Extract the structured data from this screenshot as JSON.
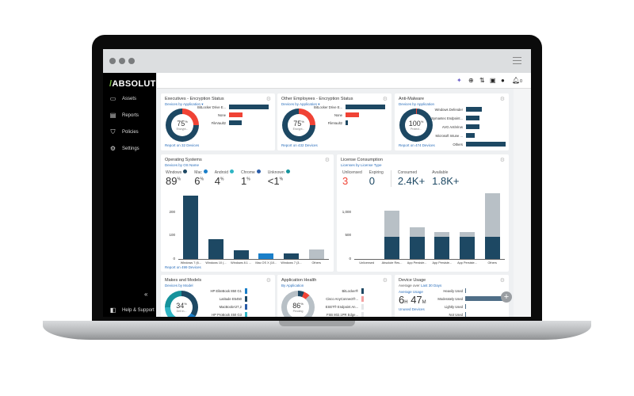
{
  "app": {
    "logo": "ABSOLUTE"
  },
  "sidebar": {
    "items": [
      {
        "label": "Assets",
        "icon": "laptop-icon"
      },
      {
        "label": "Reports",
        "icon": "document-icon"
      },
      {
        "label": "Policies",
        "icon": "shield-icon"
      },
      {
        "label": "Settings",
        "icon": "gear-icon"
      }
    ],
    "collapse": "«",
    "help": "Help & Support"
  },
  "header": {
    "notifications": "0"
  },
  "cards": {
    "exec": {
      "title": "Executives - Encryption Status",
      "subtitle": "Devices by Application ▾",
      "pct": "75",
      "unit": "%",
      "label": "Encrypt...",
      "report": "Report on 32 Devices",
      "rows": [
        {
          "label": "BitLocker Drive E...",
          "value": 100,
          "color": "#1d4863"
        },
        {
          "label": "None",
          "value": 34,
          "color": "#f04335"
        },
        {
          "label": "FileVault2",
          "value": 32,
          "color": "#1d4863"
        }
      ]
    },
    "other": {
      "title": "Other Employees - Encryption Status",
      "subtitle": "Devices by Application ▾",
      "pct": "75",
      "unit": "%",
      "label": "Encrypt...",
      "report": "Report on 432 Devices",
      "rows": [
        {
          "label": "BitLocker Drive E...",
          "value": 100,
          "color": "#1d4863"
        },
        {
          "label": "None",
          "value": 33,
          "color": "#f04335"
        },
        {
          "label": "FileVault2",
          "value": 5,
          "color": "#1d4863"
        }
      ]
    },
    "anti": {
      "title": "Anti-Malware",
      "subtitle": "Devices by Application",
      "pct": "100",
      "unit": "%",
      "label": "Protect...",
      "report": "Report on 474 Devices",
      "rows": [
        {
          "label": "Windows Defender",
          "value": 40
        },
        {
          "label": "Symantec Endpoint...",
          "value": 33
        },
        {
          "label": "AVG AntiVirus",
          "value": 33
        },
        {
          "label": "Microsoft Intune ...",
          "value": 22
        },
        {
          "label": "Others",
          "value": 100
        }
      ]
    },
    "os": {
      "title": "Operating Systems",
      "subtitle": "Devices by OS Name",
      "report": "Report on 499 Devices",
      "legend": [
        {
          "name": "Windows",
          "pct": "89",
          "color": "#1d4863"
        },
        {
          "name": "Mac",
          "pct": "6",
          "color": "#1a7fc9"
        },
        {
          "name": "Android",
          "pct": "4",
          "color": "#2fb5c4"
        },
        {
          "name": "Chrome",
          "pct": "1",
          "color": "#2a5da8"
        },
        {
          "name": "Unknown",
          "pct": "<1",
          "color": "#16939c"
        }
      ],
      "unit": "%"
    },
    "license": {
      "title": "License Consumption",
      "subtitle": "Licenses by License Type",
      "stats": [
        {
          "label": "Unlicensed",
          "value": "3",
          "color": "#f04335"
        },
        {
          "label": "Expiring",
          "value": "0",
          "color": "#1d4863"
        },
        {
          "label": "Consumed",
          "value": "2.4K+",
          "color": "#1d4863"
        },
        {
          "label": "Available",
          "value": "1.8K+",
          "color": "#1d4863"
        }
      ]
    },
    "makes": {
      "title": "Makes and Models",
      "subtitle": "Devices by Model",
      "pct": "34",
      "unit": "%",
      "label": "Dell In...",
      "rows": [
        "HP EliteBook 850 G1",
        "Latitude E5450",
        "MacBookAir7,2",
        "HP ProBook 450 G3"
      ]
    },
    "apphealth": {
      "title": "Application Health",
      "subtitle": "By Application",
      "pct": "86",
      "unit": "%",
      "label": "Pending",
      "rows": [
        "BitLocker®",
        "Cisco AnyConnect®...",
        "ESET® Endpoint An...",
        "FSB 802.1PR Edge..."
      ]
    },
    "usage": {
      "title": "Device Usage",
      "subtitle_prefix": "Average over",
      "subtitle_link": "Last 30 Days",
      "avg_label": "Average Usage",
      "hours": "6",
      "h_unit": "H",
      "minutes": "47",
      "m_unit": "M",
      "unused": "Unused Devices",
      "rows": [
        {
          "label": "Heavily Used",
          "value": 2
        },
        {
          "label": "Moderately Used",
          "value": 100
        },
        {
          "label": "Lightly Used",
          "value": 0
        },
        {
          "label": "Not Used",
          "value": 0
        }
      ]
    }
  },
  "chart_data": [
    {
      "type": "bar",
      "title": "Operating Systems",
      "categories": [
        "Windows 7 (6...",
        "Windows 10 (...",
        "Windows 8.1 ...",
        "Mac OS X (10...",
        "Windows 7 (3...",
        "Others"
      ],
      "values": [
        270,
        85,
        38,
        25,
        25,
        42
      ],
      "colors": [
        "#1d4863",
        "#1d4863",
        "#1d4863",
        "#1a7fc9",
        "#1d4863",
        "#b8c0c6"
      ],
      "yticks": [
        0,
        100,
        200
      ],
      "ylim": [
        0,
        280
      ]
    },
    {
      "type": "bar",
      "stacked": true,
      "title": "License Consumption",
      "categories": [
        "Unlicensed",
        "Absolute Res...",
        "App Persiste...",
        "App Persiste...",
        "App Persiste...",
        "Others"
      ],
      "series": [
        {
          "values": [
            0,
            480,
            480,
            480,
            480,
            480
          ],
          "color": "#1d4863"
        },
        {
          "values": [
            0,
            550,
            200,
            100,
            100,
            920
          ],
          "color": "#b8c0c6"
        }
      ],
      "yticks": [
        0,
        500,
        1000
      ],
      "ytick_labels": [
        "0",
        "500",
        "1,000"
      ],
      "ylim": [
        0,
        1400
      ]
    }
  ]
}
